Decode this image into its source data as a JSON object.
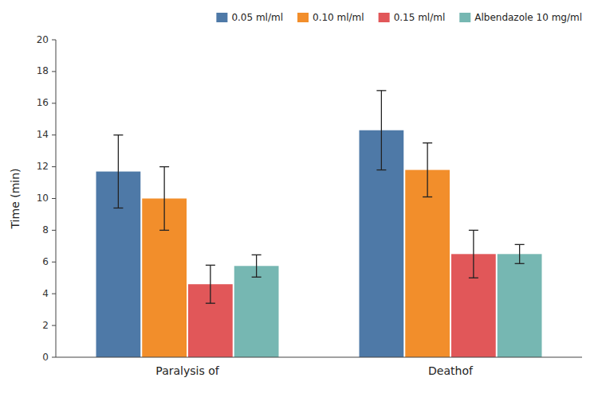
{
  "chart_data": {
    "type": "bar",
    "categories": [
      "Paralysis of",
      "Deathof"
    ],
    "series": [
      {
        "name": "0.05 ml/ml",
        "color": "#4e79a7",
        "values": [
          11.7,
          14.3
        ],
        "errors": [
          2.3,
          2.5
        ]
      },
      {
        "name": "0.10 ml/ml",
        "color": "#f28e2b",
        "values": [
          10.0,
          11.8
        ],
        "errors": [
          2.0,
          1.7
        ]
      },
      {
        "name": "0.15 ml/ml",
        "color": "#e15759",
        "values": [
          4.6,
          6.5
        ],
        "errors": [
          1.2,
          1.5
        ]
      },
      {
        "name": "Albendazole 10 mg/ml",
        "color": "#76b7b2",
        "values": [
          5.75,
          6.5
        ],
        "errors": [
          0.7,
          0.6
        ]
      }
    ],
    "ylabel": "Time (min)",
    "ylim": [
      0,
      20
    ],
    "yticks": [
      0,
      2,
      4,
      6,
      8,
      10,
      12,
      14,
      16,
      18,
      20
    ],
    "grid": false,
    "legend": "upper right"
  }
}
